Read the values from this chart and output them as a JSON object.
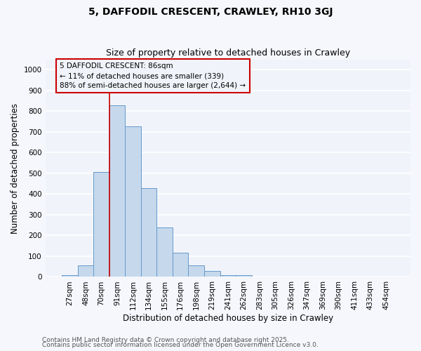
{
  "title": "5, DAFFODIL CRESCENT, CRAWLEY, RH10 3GJ",
  "subtitle": "Size of property relative to detached houses in Crawley",
  "xlabel": "Distribution of detached houses by size in Crawley",
  "ylabel": "Number of detached properties",
  "bar_labels": [
    "27sqm",
    "48sqm",
    "70sqm",
    "91sqm",
    "112sqm",
    "134sqm",
    "155sqm",
    "176sqm",
    "198sqm",
    "219sqm",
    "241sqm",
    "262sqm",
    "283sqm",
    "305sqm",
    "326sqm",
    "347sqm",
    "369sqm",
    "390sqm",
    "411sqm",
    "433sqm",
    "454sqm"
  ],
  "bar_values": [
    8,
    55,
    505,
    828,
    727,
    428,
    238,
    118,
    55,
    30,
    10,
    10,
    1,
    0,
    0,
    0,
    0,
    0,
    0,
    0,
    0
  ],
  "bar_color": "#c5d8ec",
  "bar_edge_color": "#6699cc",
  "plot_bg_color": "#f0f4fa",
  "fig_bg_color": "#f5f7fc",
  "grid_color": "#ffffff",
  "vline_x_index": 3,
  "vline_color": "#cc0000",
  "annotation_text": "5 DAFFODIL CRESCENT: 86sqm\n← 11% of detached houses are smaller (339)\n88% of semi-detached houses are larger (2,644) →",
  "annotation_box_color": "#cc0000",
  "ylim": [
    0,
    1050
  ],
  "yticks": [
    0,
    100,
    200,
    300,
    400,
    500,
    600,
    700,
    800,
    900,
    1000
  ],
  "footer_line1": "Contains HM Land Registry data © Crown copyright and database right 2025.",
  "footer_line2": "Contains public sector information licensed under the Open Government Licence v3.0.",
  "title_fontsize": 10,
  "subtitle_fontsize": 9,
  "axis_label_fontsize": 8.5,
  "tick_fontsize": 7.5,
  "annotation_fontsize": 7.5,
  "footer_fontsize": 6.5
}
